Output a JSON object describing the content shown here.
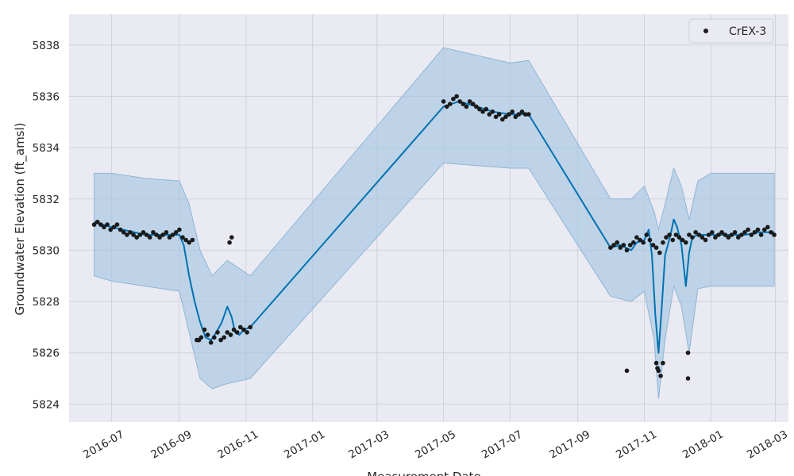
{
  "chart_data": {
    "type": "line",
    "title": "",
    "xlabel": "Measurement Date",
    "ylabel": "Groundwater Elevation (ft_amsl)",
    "x_range": [
      "2016-05-23",
      "2018-03-13"
    ],
    "ylim": [
      5823.3,
      5839.2
    ],
    "x_ticks": [
      "2016-07",
      "2016-09",
      "2016-11",
      "2017-01",
      "2017-03",
      "2017-05",
      "2017-07",
      "2017-09",
      "2017-11",
      "2018-01",
      "2018-03"
    ],
    "x_tick_dates": [
      "2016-07-01",
      "2016-09-01",
      "2016-11-01",
      "2017-01-01",
      "2017-03-01",
      "2017-05-01",
      "2017-07-01",
      "2017-09-01",
      "2017-11-01",
      "2018-01-01",
      "2018-03-01"
    ],
    "y_ticks": [
      5824,
      5826,
      5828,
      5830,
      5832,
      5834,
      5836,
      5838
    ],
    "grid": true,
    "legend": {
      "position": "top-right",
      "entries": [
        "CrEX-3"
      ]
    },
    "colors": {
      "background": "#eaeaf2",
      "grid": "#d2d2dc",
      "observed": "#1a1a1a",
      "forecast": "#0072b2",
      "band": "#a6c6e1"
    },
    "series": [
      {
        "name": "CrEX-3",
        "kind": "observed",
        "x": [
          "2016-06-15",
          "2016-06-18",
          "2016-06-21",
          "2016-06-24",
          "2016-06-27",
          "2016-06-30",
          "2016-07-03",
          "2016-07-06",
          "2016-07-09",
          "2016-07-12",
          "2016-07-15",
          "2016-07-18",
          "2016-07-21",
          "2016-07-24",
          "2016-07-27",
          "2016-07-30",
          "2016-08-02",
          "2016-08-05",
          "2016-08-08",
          "2016-08-11",
          "2016-08-14",
          "2016-08-17",
          "2016-08-20",
          "2016-08-23",
          "2016-08-26",
          "2016-08-29",
          "2016-09-01",
          "2016-09-04",
          "2016-09-07",
          "2016-09-10",
          "2016-09-13",
          "2016-09-17",
          "2016-09-19",
          "2016-09-21",
          "2016-09-24",
          "2016-09-27",
          "2016-09-30",
          "2016-10-03",
          "2016-10-06",
          "2016-10-09",
          "2016-10-12",
          "2016-10-15",
          "2016-10-18",
          "2016-10-21",
          "2016-10-24",
          "2016-10-27",
          "2016-10-30",
          "2016-11-02",
          "2016-11-05",
          "2016-10-17",
          "2016-10-19",
          "2017-05-01",
          "2017-05-04",
          "2017-05-07",
          "2017-05-10",
          "2017-05-13",
          "2017-05-16",
          "2017-05-19",
          "2017-05-22",
          "2017-05-25",
          "2017-05-28",
          "2017-05-31",
          "2017-06-03",
          "2017-06-06",
          "2017-06-09",
          "2017-06-12",
          "2017-06-15",
          "2017-06-18",
          "2017-06-21",
          "2017-06-24",
          "2017-06-27",
          "2017-06-30",
          "2017-07-03",
          "2017-07-06",
          "2017-07-09",
          "2017-07-12",
          "2017-07-15",
          "2017-07-18",
          "2017-10-01",
          "2017-10-04",
          "2017-10-07",
          "2017-10-10",
          "2017-10-13",
          "2017-10-16",
          "2017-10-19",
          "2017-10-22",
          "2017-10-25",
          "2017-10-28",
          "2017-10-31",
          "2017-11-03",
          "2017-11-06",
          "2017-11-09",
          "2017-11-12",
          "2017-11-15",
          "2017-11-18",
          "2017-11-21",
          "2017-11-24",
          "2017-11-27",
          "2017-11-30",
          "2017-12-03",
          "2017-12-06",
          "2017-12-09",
          "2017-12-12",
          "2017-12-15",
          "2017-12-18",
          "2017-12-21",
          "2017-12-24",
          "2017-12-27",
          "2017-12-30",
          "2018-01-02",
          "2018-01-05",
          "2018-01-08",
          "2018-01-11",
          "2018-01-14",
          "2018-01-17",
          "2018-01-20",
          "2018-01-23",
          "2018-01-26",
          "2018-01-29",
          "2018-02-01",
          "2018-02-04",
          "2018-02-07",
          "2018-02-10",
          "2018-02-13",
          "2018-02-16",
          "2018-02-19",
          "2018-02-22",
          "2018-02-25",
          "2018-02-28",
          "2017-10-16",
          "2017-11-12",
          "2017-11-13",
          "2017-11-14",
          "2017-11-16",
          "2017-11-18",
          "2017-12-11",
          "2017-12-11"
        ],
        "y": [
          5831.0,
          5831.1,
          5831.0,
          5830.9,
          5831.0,
          5830.8,
          5830.9,
          5831.0,
          5830.8,
          5830.7,
          5830.6,
          5830.7,
          5830.6,
          5830.5,
          5830.6,
          5830.7,
          5830.6,
          5830.5,
          5830.7,
          5830.6,
          5830.5,
          5830.6,
          5830.7,
          5830.5,
          5830.6,
          5830.7,
          5830.8,
          5830.5,
          5830.4,
          5830.3,
          5830.4,
          5826.5,
          5826.5,
          5826.6,
          5826.9,
          5826.7,
          5826.4,
          5826.6,
          5826.8,
          5826.5,
          5826.6,
          5826.8,
          5826.7,
          5826.9,
          5826.8,
          5827.0,
          5826.9,
          5826.8,
          5827.0,
          5830.3,
          5830.5,
          5835.8,
          5835.6,
          5835.7,
          5835.9,
          5836.0,
          5835.8,
          5835.7,
          5835.6,
          5835.8,
          5835.7,
          5835.6,
          5835.5,
          5835.4,
          5835.5,
          5835.3,
          5835.4,
          5835.2,
          5835.3,
          5835.1,
          5835.2,
          5835.3,
          5835.4,
          5835.2,
          5835.3,
          5835.4,
          5835.3,
          5835.3,
          5830.1,
          5830.2,
          5830.3,
          5830.1,
          5830.2,
          5830.0,
          5830.2,
          5830.3,
          5830.5,
          5830.4,
          5830.3,
          5830.6,
          5830.4,
          5830.2,
          5830.1,
          5829.9,
          5830.3,
          5830.5,
          5830.6,
          5830.4,
          5830.6,
          5830.5,
          5830.4,
          5830.3,
          5830.6,
          5830.5,
          5830.7,
          5830.6,
          5830.5,
          5830.4,
          5830.6,
          5830.7,
          5830.5,
          5830.6,
          5830.7,
          5830.6,
          5830.5,
          5830.6,
          5830.7,
          5830.5,
          5830.6,
          5830.7,
          5830.8,
          5830.6,
          5830.7,
          5830.8,
          5830.6,
          5830.8,
          5830.9,
          5830.7,
          5830.6,
          5825.3,
          5825.6,
          5825.4,
          5825.3,
          5825.1,
          5825.6,
          5826.0,
          5825.0
        ]
      },
      {
        "name": "",
        "kind": "forecast",
        "x": [
          "2016-06-15",
          "2016-07-01",
          "2016-08-01",
          "2016-09-01",
          "2016-09-05",
          "2016-09-10",
          "2016-09-15",
          "2016-09-20",
          "2016-09-25",
          "2016-09-30",
          "2016-10-05",
          "2016-10-10",
          "2016-10-15",
          "2016-10-19",
          "2016-10-22",
          "2016-10-26",
          "2016-10-30",
          "2016-11-05",
          "2017-05-01",
          "2017-05-15",
          "2017-06-01",
          "2017-06-15",
          "2017-07-01",
          "2017-07-18",
          "2017-10-01",
          "2017-10-10",
          "2017-10-15",
          "2017-10-20",
          "2017-10-25",
          "2017-11-01",
          "2017-11-05",
          "2017-11-08",
          "2017-11-11",
          "2017-11-14",
          "2017-11-17",
          "2017-11-20",
          "2017-11-25",
          "2017-11-28",
          "2017-12-01",
          "2017-12-05",
          "2017-12-09",
          "2017-12-12",
          "2017-12-15",
          "2017-12-20",
          "2018-01-01",
          "2018-01-15",
          "2018-02-01",
          "2018-02-15",
          "2018-02-28"
        ],
        "y": [
          5831.1,
          5830.9,
          5830.6,
          5830.6,
          5830.2,
          5829.0,
          5828.0,
          5827.2,
          5826.6,
          5826.5,
          5826.8,
          5827.2,
          5827.8,
          5827.4,
          5826.8,
          5826.7,
          5826.9,
          5827.0,
          5835.6,
          5835.8,
          5835.6,
          5835.4,
          5835.3,
          5835.3,
          5830.1,
          5830.2,
          5830.1,
          5830.0,
          5830.3,
          5830.4,
          5830.8,
          5829.8,
          5827.5,
          5826.0,
          5827.8,
          5829.8,
          5830.6,
          5831.2,
          5830.9,
          5830.2,
          5828.6,
          5829.9,
          5830.5,
          5830.6,
          5830.6,
          5830.6,
          5830.6,
          5830.7,
          5830.7
        ]
      },
      {
        "name": "",
        "kind": "uncertainty-upper",
        "x": [
          "2016-06-15",
          "2016-07-01",
          "2016-08-01",
          "2016-09-01",
          "2016-09-10",
          "2016-09-20",
          "2016-10-01",
          "2016-10-15",
          "2016-11-05",
          "2017-05-01",
          "2017-07-01",
          "2017-07-18",
          "2017-10-01",
          "2017-10-20",
          "2017-11-01",
          "2017-11-10",
          "2017-11-14",
          "2017-11-20",
          "2017-11-28",
          "2017-12-05",
          "2017-12-12",
          "2017-12-20",
          "2018-01-01",
          "2018-02-28"
        ],
        "y": [
          5833.0,
          5833.0,
          5832.8,
          5832.7,
          5831.8,
          5830.0,
          5829.0,
          5829.6,
          5829.0,
          5837.9,
          5837.3,
          5837.4,
          5832.0,
          5832.0,
          5832.5,
          5831.5,
          5830.8,
          5831.8,
          5833.2,
          5832.5,
          5831.2,
          5832.7,
          5833.0,
          5833.0
        ]
      },
      {
        "name": "",
        "kind": "uncertainty-lower",
        "x": [
          "2016-06-15",
          "2016-07-01",
          "2016-08-01",
          "2016-09-01",
          "2016-09-10",
          "2016-09-20",
          "2016-10-01",
          "2016-10-15",
          "2016-11-05",
          "2017-05-01",
          "2017-07-01",
          "2017-07-18",
          "2017-10-01",
          "2017-10-20",
          "2017-11-01",
          "2017-11-10",
          "2017-11-14",
          "2017-11-20",
          "2017-11-28",
          "2017-12-05",
          "2017-12-12",
          "2017-12-20",
          "2018-01-01",
          "2018-02-28"
        ],
        "y": [
          5829.0,
          5828.8,
          5828.6,
          5828.4,
          5826.8,
          5825.0,
          5824.6,
          5824.8,
          5825.0,
          5833.4,
          5833.2,
          5833.2,
          5828.2,
          5828.0,
          5828.4,
          5826.5,
          5824.2,
          5826.5,
          5828.6,
          5827.8,
          5826.0,
          5828.5,
          5828.6,
          5828.6
        ]
      }
    ]
  }
}
